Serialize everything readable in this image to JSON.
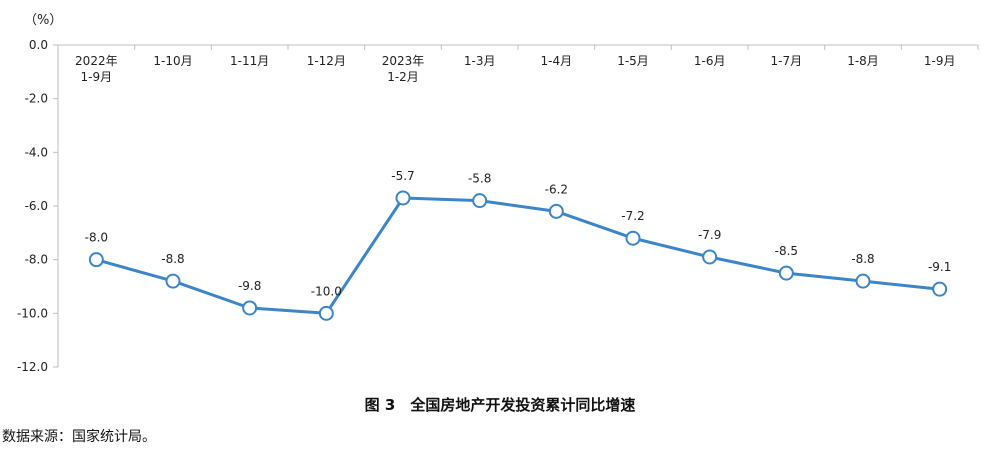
{
  "chart_data": {
    "type": "line",
    "title": "图 3　全国房地产开发投资累计同比增速",
    "y_unit": "（%）",
    "xlabel": "",
    "ylabel": "",
    "categories": [
      [
        "2022年",
        "1-9月"
      ],
      [
        "1-10月"
      ],
      [
        "1-11月"
      ],
      [
        "1-12月"
      ],
      [
        "2023年",
        "1-2月"
      ],
      [
        "1-3月"
      ],
      [
        "1-4月"
      ],
      [
        "1-5月"
      ],
      [
        "1-6月"
      ],
      [
        "1-7月"
      ],
      [
        "1-8月"
      ],
      [
        "1-9月"
      ]
    ],
    "series": [
      {
        "values": [
          -8.0,
          -8.8,
          -9.8,
          -10.0,
          -5.7,
          -5.8,
          -6.2,
          -7.2,
          -7.9,
          -8.5,
          -8.8,
          -9.1
        ],
        "data_labels": [
          "-8.0",
          "-8.8",
          "-9.8",
          "-10.0",
          "-5.7",
          "-5.8",
          "-6.2",
          "-7.2",
          "-7.9",
          "-8.5",
          "-8.8",
          "-9.1"
        ],
        "color": "#3a86c8"
      }
    ],
    "ylim": [
      -12.0,
      0.0
    ],
    "yticks": [
      0.0,
      -2.0,
      -4.0,
      -6.0,
      -8.0,
      -10.0,
      -12.0
    ],
    "ytick_labels": [
      "0.0",
      "-2.0",
      "-4.0",
      "-6.0",
      "-8.0",
      "-10.0",
      "-12.0"
    ],
    "grid": false,
    "legend": "none",
    "axis_color": "#bfbfbf"
  },
  "source_note": "数据来源：国家统计局。"
}
